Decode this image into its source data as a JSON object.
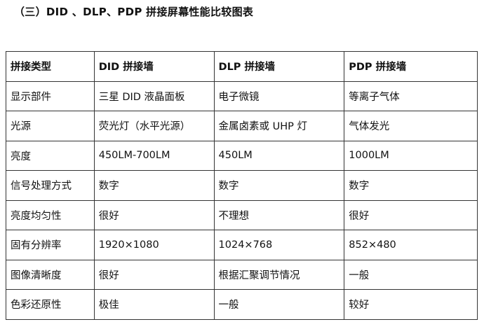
{
  "title": "（三）DID 、DLP、PDP 拼接屏幕性能比较图表",
  "headers": [
    "拼接类型",
    "DID 拼接墙",
    "DLP 拼接墙",
    "PDP 拼接墙"
  ],
  "rows": [
    [
      "显示部件",
      "三星 DID 液晶面板",
      "电子微镜",
      "等离子气体"
    ],
    [
      "光源",
      "荧光灯（水平光源）",
      "金属卤素或 UHP 灯",
      "气体发光"
    ],
    [
      "亮度",
      "450LM-700LM",
      "450LM",
      "1000LM"
    ],
    [
      "信号处理方式",
      "数字",
      "数字",
      "数字"
    ],
    [
      "亮度均匀性",
      "很好",
      "不理想",
      "很好"
    ],
    [
      "固有分辨率",
      "1920×1080",
      "1024×768",
      "852×480"
    ],
    [
      "图像清晰度",
      "很好",
      "根据汇聚调节情况",
      "一般"
    ],
    [
      "色彩还原性",
      "极佳",
      "一般",
      "较好"
    ]
  ]
}
